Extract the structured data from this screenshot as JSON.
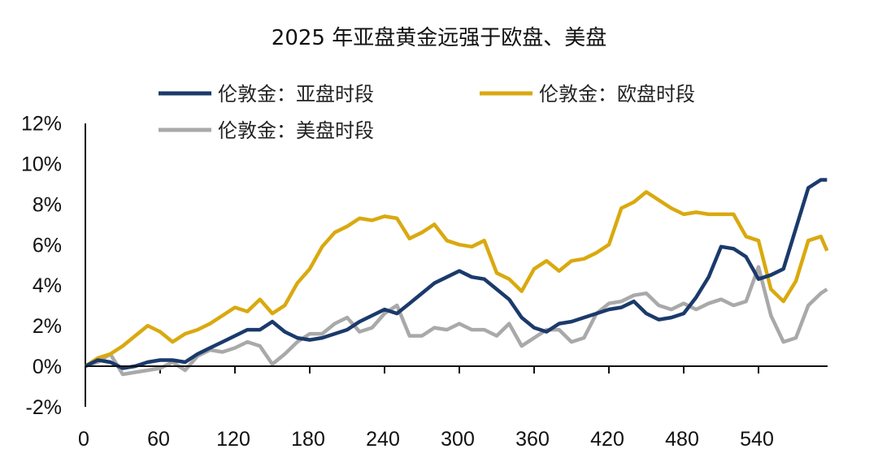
{
  "chart_data": {
    "type": "line",
    "title": "2025 年亚盘黄金远强于欧盘、美盘",
    "xlabel": "",
    "ylabel": "",
    "xlim": [
      0,
      595
    ],
    "ylim": [
      -2,
      12
    ],
    "grid": false,
    "legend_placement": "top",
    "x_ticks": [
      "0",
      "60",
      "120",
      "180",
      "240",
      "300",
      "360",
      "420",
      "480",
      "540"
    ],
    "x_tick_values": [
      0,
      60,
      120,
      180,
      240,
      300,
      360,
      420,
      480,
      540
    ],
    "y_ticks": [
      "-2%",
      "0%",
      "2%",
      "4%",
      "6%",
      "8%",
      "10%",
      "12%"
    ],
    "y_tick_values": [
      -2,
      0,
      2,
      4,
      6,
      8,
      10,
      12
    ],
    "x": [
      0,
      10,
      20,
      30,
      40,
      50,
      60,
      70,
      80,
      90,
      100,
      110,
      120,
      130,
      140,
      150,
      160,
      170,
      180,
      190,
      200,
      210,
      220,
      230,
      240,
      250,
      260,
      270,
      280,
      290,
      300,
      310,
      320,
      330,
      340,
      350,
      360,
      370,
      380,
      390,
      400,
      410,
      420,
      430,
      440,
      450,
      460,
      470,
      480,
      490,
      500,
      510,
      520,
      530,
      540,
      550,
      560,
      570,
      580,
      590,
      595
    ],
    "series": [
      {
        "name": "伦敦金：亚盘时段",
        "color": "#1b3a6b",
        "values": [
          0,
          0.3,
          0.2,
          -0.1,
          0,
          0.2,
          0.3,
          0.3,
          0.2,
          0.6,
          0.9,
          1.2,
          1.5,
          1.8,
          1.8,
          2.2,
          1.7,
          1.4,
          1.3,
          1.4,
          1.6,
          1.8,
          2.2,
          2.5,
          2.8,
          2.6,
          3.1,
          3.6,
          4.1,
          4.4,
          4.7,
          4.4,
          4.3,
          3.8,
          3.3,
          2.4,
          1.9,
          1.7,
          2.1,
          2.2,
          2.4,
          2.6,
          2.8,
          2.9,
          3.2,
          2.6,
          2.3,
          2.4,
          2.6,
          3.4,
          4.4,
          5.9,
          5.8,
          5.4,
          4.3,
          4.5,
          4.8,
          6.8,
          8.8,
          9.2,
          9.2
        ]
      },
      {
        "name": "伦敦金：欧盘时段",
        "color": "#d9a90f",
        "values": [
          0,
          0.4,
          0.6,
          1.0,
          1.5,
          2.0,
          1.7,
          1.2,
          1.6,
          1.8,
          2.1,
          2.5,
          2.9,
          2.7,
          3.3,
          2.6,
          3.0,
          4.1,
          4.8,
          5.9,
          6.6,
          6.9,
          7.3,
          7.2,
          7.4,
          7.3,
          6.3,
          6.6,
          7.0,
          6.2,
          6.0,
          5.9,
          6.2,
          4.6,
          4.3,
          3.7,
          4.8,
          5.2,
          4.7,
          5.2,
          5.3,
          5.6,
          6.0,
          7.8,
          8.1,
          8.6,
          8.2,
          7.8,
          7.5,
          7.6,
          7.5,
          7.5,
          7.5,
          6.4,
          6.2,
          3.8,
          3.2,
          4.2,
          6.2,
          6.4,
          5.7
        ]
      },
      {
        "name": "伦敦金：美盘时段",
        "color": "#a9a9a9",
        "values": [
          0,
          0.2,
          0.6,
          -0.4,
          -0.3,
          -0.2,
          -0.1,
          0.2,
          -0.2,
          0.5,
          0.8,
          0.7,
          0.9,
          1.2,
          1.0,
          0.1,
          0.6,
          1.2,
          1.6,
          1.6,
          2.1,
          2.4,
          1.7,
          1.9,
          2.6,
          3.0,
          1.5,
          1.5,
          1.9,
          1.8,
          2.1,
          1.8,
          1.8,
          1.5,
          2.1,
          1.0,
          1.4,
          1.8,
          1.8,
          1.2,
          1.4,
          2.6,
          3.1,
          3.2,
          3.5,
          3.6,
          3.0,
          2.8,
          3.1,
          2.8,
          3.1,
          3.3,
          3.0,
          3.2,
          4.9,
          2.5,
          1.2,
          1.4,
          3.0,
          3.6,
          3.8
        ]
      }
    ]
  }
}
